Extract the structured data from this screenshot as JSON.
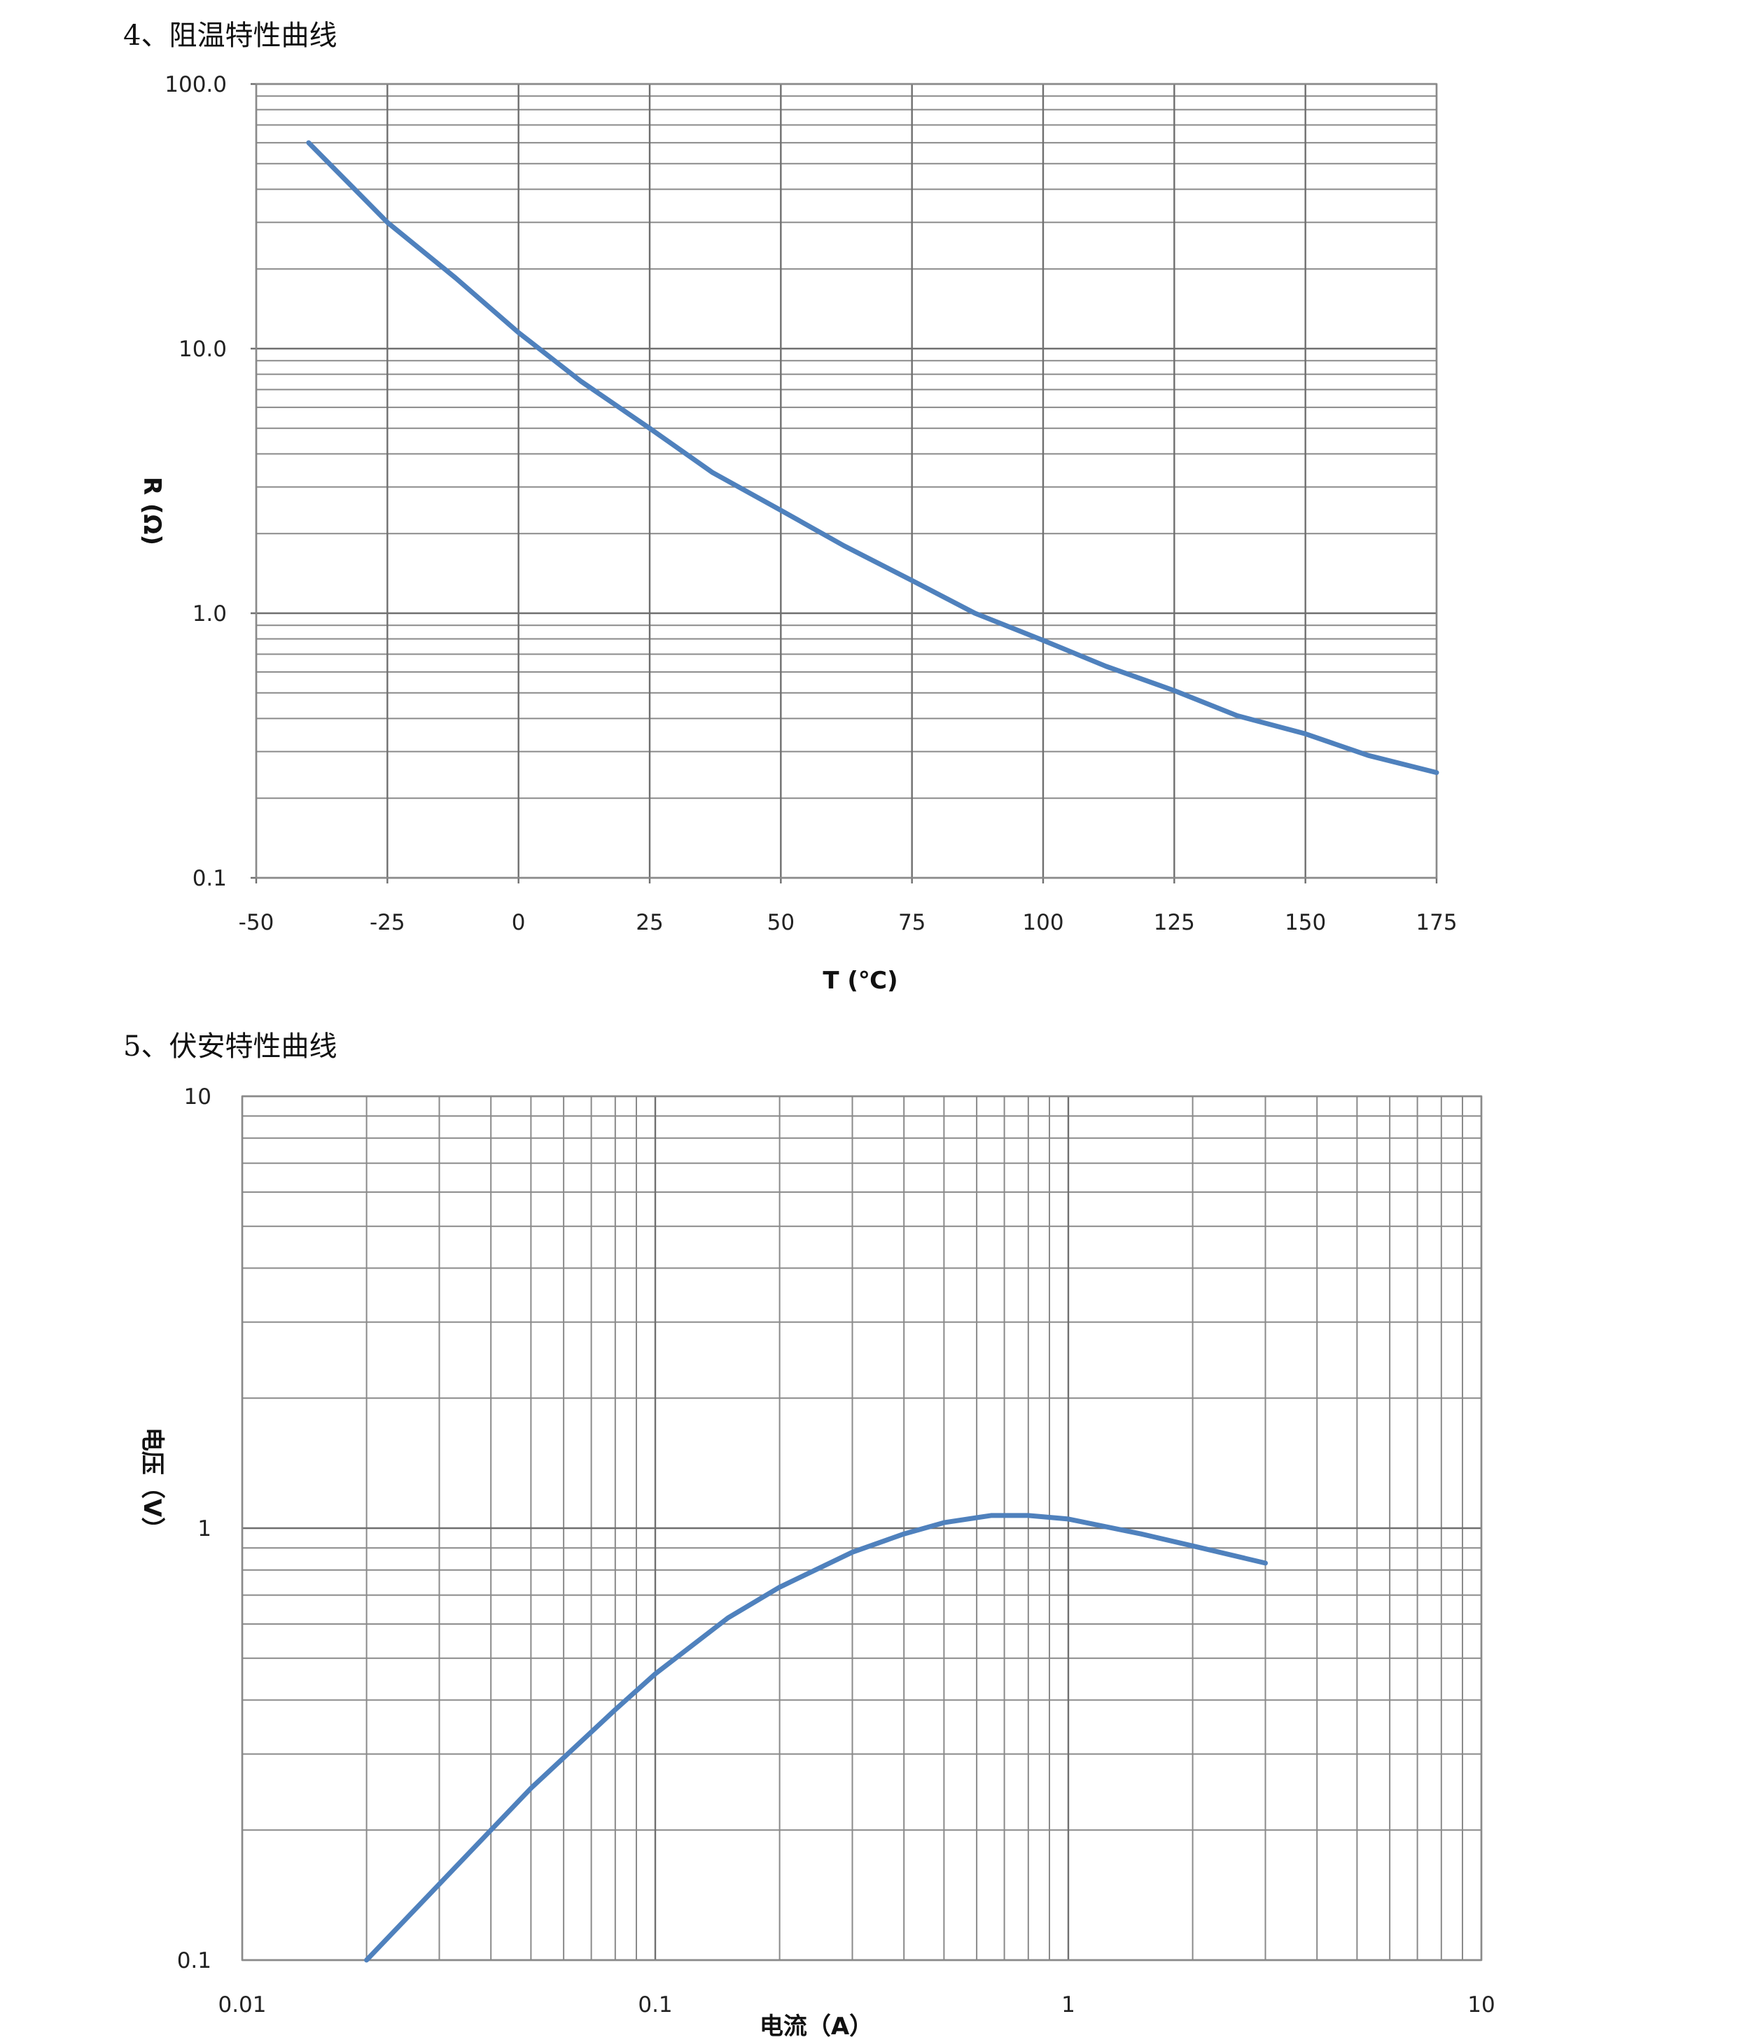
{
  "sections": {
    "rt_title": "4、阻温特性曲线",
    "vi_title": "5、伏安特性曲线"
  },
  "colors": {
    "curve": "#4f81bd",
    "grid": "#8a8a8a"
  },
  "chart_data": [
    {
      "type": "line",
      "title": "",
      "xlabel": "T (℃)",
      "ylabel": "R (Ω)",
      "xlim": [
        -50,
        175
      ],
      "ylim": [
        0.1,
        100
      ],
      "y_scale": "log",
      "x_ticks": [
        "-50",
        "-25",
        "0",
        "25",
        "50",
        "75",
        "100",
        "125",
        "150",
        "175"
      ],
      "y_ticks": [
        "100.0",
        "10.0",
        "1.0",
        "0.1"
      ],
      "grid": true,
      "x": [
        -40,
        -25,
        -12,
        0,
        12,
        25,
        37,
        50,
        62,
        75,
        87,
        100,
        112,
        125,
        137,
        150,
        162,
        175
      ],
      "y": [
        60,
        30,
        18.5,
        11.5,
        7.5,
        5.0,
        3.4,
        2.45,
        1.8,
        1.33,
        1.0,
        0.79,
        0.63,
        0.51,
        0.41,
        0.35,
        0.29,
        0.25
      ]
    },
    {
      "type": "line",
      "title": "",
      "xlabel": "电流（A）",
      "ylabel": "电压（V）",
      "xlim": [
        0.01,
        10
      ],
      "ylim": [
        0.1,
        10
      ],
      "x_scale": "log",
      "y_scale": "log",
      "x_ticks": [
        "0.01",
        "0.1",
        "1",
        "10"
      ],
      "y_ticks": [
        "10",
        "1",
        "0.1"
      ],
      "grid": true,
      "x": [
        0.02,
        0.03,
        0.05,
        0.08,
        0.1,
        0.15,
        0.2,
        0.3,
        0.4,
        0.5,
        0.65,
        0.8,
        1.0,
        1.5,
        2.0,
        3.0
      ],
      "y": [
        0.1,
        0.15,
        0.25,
        0.38,
        0.46,
        0.62,
        0.73,
        0.88,
        0.97,
        1.03,
        1.07,
        1.07,
        1.05,
        0.97,
        0.91,
        0.83
      ]
    }
  ]
}
